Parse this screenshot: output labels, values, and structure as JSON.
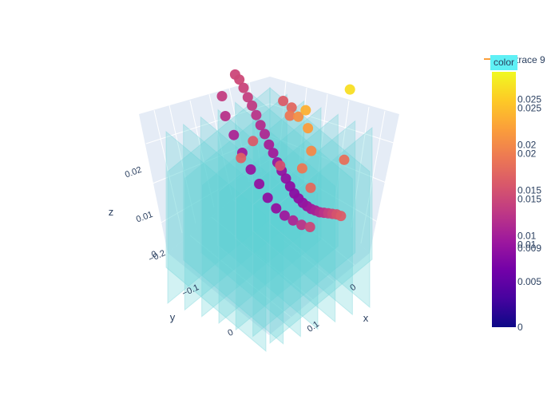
{
  "chart_data": {
    "type": "scatter3d",
    "scene": {
      "axes": {
        "x": {
          "title": "x",
          "ticks": [
            "0",
            "0.1"
          ]
        },
        "y": {
          "title": "y",
          "ticks": [
            "−0.2",
            "−0.1",
            "0"
          ]
        },
        "z": {
          "title": "z",
          "ticks": [
            "0",
            "0.01",
            "0.02"
          ]
        }
      },
      "background_color": "#e5ecf6",
      "grid": true,
      "planes_color": "#5fcfd5",
      "planes_per_direction": 7
    },
    "colorbar": {
      "title": "color",
      "min": 0,
      "max": 0.028,
      "ticks": [
        "0",
        "0.005",
        "0.01",
        "0.015",
        "0.02",
        "0.025"
      ],
      "ticks_secondary": [
        "0.009",
        "0.01",
        "0.015",
        "0.02",
        "0.025"
      ],
      "colorscale": [
        "#0d0887",
        "#46039f",
        "#7201a8",
        "#9c179e",
        "#bd3786",
        "#d8576b",
        "#ed7953",
        "#fb9f3a",
        "#fdca26",
        "#f0f921"
      ]
    },
    "legend": {
      "entries": [
        "trace 9"
      ],
      "placement": "top-right"
    },
    "series": [
      {
        "name": "markers",
        "points": [
          [
            -0.22,
            -0.2,
            0.014
          ],
          [
            -0.205,
            -0.19,
            0.0142
          ],
          [
            -0.19,
            -0.18,
            0.0138
          ],
          [
            -0.175,
            -0.17,
            0.0132
          ],
          [
            -0.16,
            -0.16,
            0.0128
          ],
          [
            -0.145,
            -0.15,
            0.0122
          ],
          [
            -0.13,
            -0.14,
            0.0115
          ],
          [
            -0.115,
            -0.13,
            0.011
          ],
          [
            -0.1,
            -0.12,
            0.0102
          ],
          [
            -0.085,
            -0.11,
            0.0098
          ],
          [
            -0.07,
            -0.1,
            0.0092
          ],
          [
            -0.055,
            -0.09,
            0.0088
          ],
          [
            -0.04,
            -0.08,
            0.0085
          ],
          [
            -0.025,
            -0.07,
            0.0082
          ],
          [
            -0.01,
            -0.06,
            0.008
          ],
          [
            0.005,
            -0.05,
            0.0082
          ],
          [
            0.02,
            -0.04,
            0.0085
          ],
          [
            0.035,
            -0.03,
            0.009
          ],
          [
            0.05,
            -0.02,
            0.0096
          ],
          [
            0.065,
            -0.01,
            0.0104
          ],
          [
            0.08,
            0.0,
            0.0112
          ],
          [
            0.095,
            0.01,
            0.0122
          ],
          [
            0.11,
            0.02,
            0.0132
          ],
          [
            0.125,
            0.03,
            0.0142
          ],
          [
            0.14,
            0.04,
            0.0152
          ],
          [
            0.155,
            0.05,
            0.016
          ],
          [
            -0.2,
            -0.15,
            0.013
          ],
          [
            -0.17,
            -0.12,
            0.012
          ],
          [
            -0.14,
            -0.1,
            0.0108
          ],
          [
            -0.11,
            -0.08,
            0.0098
          ],
          [
            -0.08,
            -0.06,
            0.009
          ],
          [
            -0.05,
            -0.04,
            0.0086
          ],
          [
            -0.02,
            -0.02,
            0.0083
          ],
          [
            0.01,
            0.0,
            0.0086
          ],
          [
            0.04,
            0.02,
            0.0095
          ],
          [
            0.07,
            0.04,
            0.0108
          ],
          [
            0.1,
            0.06,
            0.0122
          ],
          [
            0.13,
            0.08,
            0.014
          ],
          [
            -0.05,
            -0.1,
            0.0185
          ],
          [
            -0.02,
            -0.08,
            0.0205
          ],
          [
            0.0,
            -0.07,
            0.023
          ],
          [
            0.02,
            -0.05,
            0.0215
          ],
          [
            0.05,
            -0.02,
            0.02
          ],
          [
            0.03,
            -0.12,
            0.0262
          ],
          [
            -0.08,
            -0.14,
            0.017
          ],
          [
            0.06,
            0.01,
            0.0185
          ],
          [
            0.09,
            0.03,
            0.0172
          ],
          [
            -0.11,
            -0.16,
            0.016
          ],
          [
            0.0,
            -0.02,
            0.015
          ],
          [
            -0.03,
            0.02,
            0.0165
          ],
          [
            0.07,
            -0.06,
            0.0178
          ],
          [
            -0.06,
            -0.04,
            0.0158
          ]
        ]
      }
    ]
  }
}
